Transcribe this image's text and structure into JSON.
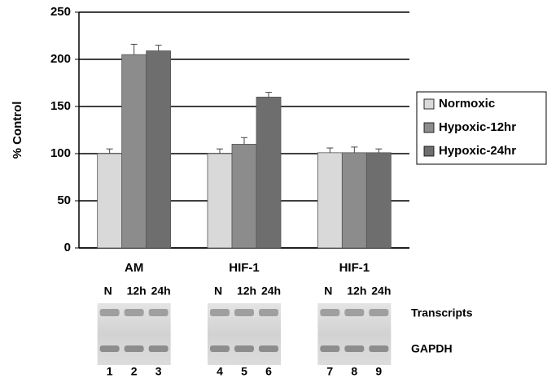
{
  "chart_data": {
    "type": "bar",
    "y_label": "% Control",
    "categories": [
      "AM",
      "HIF-1",
      "HIF-1"
    ],
    "series": [
      {
        "name": "Normoxic",
        "color": "#d9d9d9",
        "values": [
          100,
          100,
          101
        ],
        "errors": [
          5,
          5,
          5
        ]
      },
      {
        "name": "Hypoxic-12hr",
        "color": "#8c8c8c",
        "values": [
          205,
          110,
          101
        ],
        "errors": [
          11,
          7,
          6
        ]
      },
      {
        "name": "Hypoxic-24hr",
        "color": "#6e6e6e",
        "values": [
          209,
          160,
          101
        ],
        "errors": [
          6,
          5,
          4
        ]
      }
    ],
    "ylim": [
      0,
      250
    ],
    "yticks": [
      0,
      50,
      100,
      150,
      200,
      250
    ],
    "grid": true,
    "legend": "right"
  },
  "blot": {
    "row_labels": [
      "Transcripts",
      "GAPDH"
    ],
    "panels": [
      {
        "lanes": [
          "N",
          "12h",
          "24h"
        ],
        "numbers": [
          "1",
          "2",
          "3"
        ]
      },
      {
        "lanes": [
          "N",
          "12h",
          "24h"
        ],
        "numbers": [
          "4",
          "5",
          "6"
        ]
      },
      {
        "lanes": [
          "N",
          "12h",
          "24h"
        ],
        "numbers": [
          "7",
          "8",
          "9"
        ]
      }
    ]
  }
}
